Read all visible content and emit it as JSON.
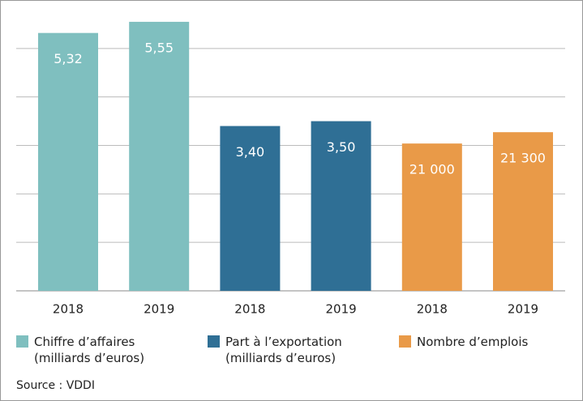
{
  "chart_data": {
    "type": "bar",
    "categories": [
      "2018",
      "2019"
    ],
    "series": [
      {
        "name": "Chiffre d’affaires (milliards d’euros)",
        "color": "#7fbfbf",
        "values": [
          5.32,
          5.55
        ],
        "value_labels": [
          "5,32",
          "5,55"
        ]
      },
      {
        "name": "Part à l’exportation (milliards d’euros)",
        "color": "#2f6f95",
        "values": [
          3.4,
          3.5
        ],
        "value_labels": [
          "3,40",
          "3,50"
        ]
      },
      {
        "name": "Nombre d’emplois",
        "color": "#e99a48",
        "values": [
          21000,
          21300
        ],
        "value_labels": [
          "21 000",
          "21 300"
        ],
        "axis": "y2"
      }
    ],
    "ylim": [
      0,
      6
    ],
    "yticks": [
      0,
      1,
      2,
      3,
      4,
      5
    ],
    "y2lim": [
      17100,
      24800
    ],
    "grid": true,
    "source": "Source : VDDI"
  }
}
